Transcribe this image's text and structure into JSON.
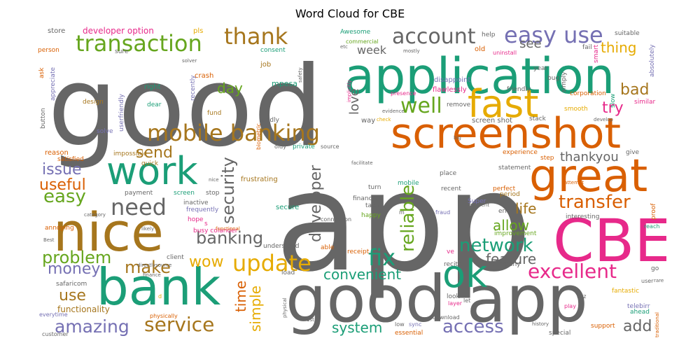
{
  "title": "Word Cloud for CBE",
  "palette": {
    "grey": "#666666",
    "green": "#66a61e",
    "teal": "#1b9e77",
    "orange": "#d95f02",
    "pink": "#e7298a",
    "purple": "#7570b3",
    "gold": "#e6ab02",
    "brown": "#a6761d"
  },
  "words": [
    {
      "text": "app",
      "color": "grey"
    },
    {
      "text": "good",
      "color": "grey"
    },
    {
      "text": "application",
      "color": "teal"
    },
    {
      "text": "screenshot",
      "color": "orange"
    },
    {
      "text": "good app",
      "color": "grey"
    },
    {
      "text": "CBE",
      "color": "pink"
    },
    {
      "text": "nice",
      "color": "brown"
    },
    {
      "text": "bank",
      "color": "teal"
    },
    {
      "text": "great",
      "color": "orange"
    },
    {
      "text": "work",
      "color": "teal"
    },
    {
      "text": "fast",
      "color": "gold"
    },
    {
      "text": "ok",
      "color": "teal"
    },
    {
      "text": "mobile banking",
      "color": "brown"
    },
    {
      "text": "transaction",
      "color": "green"
    },
    {
      "text": "thank",
      "color": "brown"
    },
    {
      "text": "account",
      "color": "grey"
    },
    {
      "text": "easy use",
      "color": "purple"
    },
    {
      "text": "well",
      "color": "green"
    },
    {
      "text": "need",
      "color": "grey"
    },
    {
      "text": "update",
      "color": "gold"
    },
    {
      "text": "fix",
      "color": "teal"
    },
    {
      "text": "service",
      "color": "brown"
    },
    {
      "text": "amazing",
      "color": "purple"
    },
    {
      "text": "excellent",
      "color": "pink"
    },
    {
      "text": "transfer",
      "color": "orange"
    },
    {
      "text": "network",
      "color": "teal"
    },
    {
      "text": "problem",
      "color": "green"
    },
    {
      "text": "make",
      "color": "brown"
    },
    {
      "text": "easy",
      "color": "green"
    },
    {
      "text": "useful",
      "color": "orange"
    },
    {
      "text": "issue",
      "color": "purple"
    },
    {
      "text": "send",
      "color": "brown"
    },
    {
      "text": "security",
      "color": "grey"
    },
    {
      "text": "banking",
      "color": "grey"
    },
    {
      "text": "wow",
      "color": "gold"
    },
    {
      "text": "money",
      "color": "purple"
    },
    {
      "text": "use",
      "color": "brown"
    },
    {
      "text": "convenient",
      "color": "teal"
    },
    {
      "text": "access",
      "color": "purple"
    },
    {
      "text": "system",
      "color": "teal"
    },
    {
      "text": "add",
      "color": "grey"
    },
    {
      "text": "reliable",
      "color": "green"
    },
    {
      "text": "developer",
      "color": "grey"
    },
    {
      "text": "simple",
      "color": "gold"
    },
    {
      "text": "time",
      "color": "orange"
    },
    {
      "text": "feature",
      "color": "grey"
    },
    {
      "text": "life",
      "color": "brown"
    },
    {
      "text": "allow",
      "color": "green"
    },
    {
      "text": "thankyou",
      "color": "grey"
    },
    {
      "text": "try",
      "color": "pink"
    },
    {
      "text": "bad",
      "color": "brown"
    },
    {
      "text": "thing",
      "color": "gold"
    },
    {
      "text": "see",
      "color": "grey"
    },
    {
      "text": "day",
      "color": "green"
    },
    {
      "text": "week",
      "color": "grey"
    },
    {
      "text": "love",
      "color": "grey"
    },
    {
      "text": "functionality",
      "color": "brown"
    },
    {
      "text": "developer option",
      "color": "pink"
    },
    {
      "text": "store",
      "color": "grey"
    },
    {
      "text": "pls",
      "color": "gold"
    },
    {
      "text": "Awesome",
      "color": "teal"
    },
    {
      "text": "help",
      "color": "grey"
    },
    {
      "text": "suitable",
      "color": "grey"
    },
    {
      "text": "absolutely",
      "color": "purple"
    },
    {
      "text": "person",
      "color": "orange"
    },
    {
      "text": "consent",
      "color": "teal"
    },
    {
      "text": "commercial",
      "color": "green"
    },
    {
      "text": "old",
      "color": "orange"
    },
    {
      "text": "uninstall",
      "color": "pink"
    },
    {
      "text": "fail",
      "color": "grey"
    },
    {
      "text": "smart",
      "color": "pink"
    },
    {
      "text": "job",
      "color": "brown"
    },
    {
      "text": "crash",
      "color": "orange"
    },
    {
      "text": "mpesa",
      "color": "teal"
    },
    {
      "text": "right",
      "color": "teal"
    },
    {
      "text": "recently",
      "color": "purple"
    },
    {
      "text": "flawlessly",
      "color": "pink"
    },
    {
      "text": "friendly",
      "color": "grey"
    },
    {
      "text": "corporation",
      "color": "orange"
    },
    {
      "text": "design",
      "color": "brown"
    },
    {
      "text": "dear",
      "color": "teal"
    },
    {
      "text": "fund",
      "color": "brown"
    },
    {
      "text": "userfriendly",
      "color": "purple"
    },
    {
      "text": "remove",
      "color": "grey"
    },
    {
      "text": "smooth",
      "color": "gold"
    },
    {
      "text": "slow",
      "color": "teal"
    },
    {
      "text": "similar",
      "color": "pink"
    },
    {
      "text": "button",
      "color": "grey"
    },
    {
      "text": "ask",
      "color": "orange"
    },
    {
      "text": "appreciate",
      "color": "purple"
    },
    {
      "text": "sure",
      "color": "grey"
    },
    {
      "text": "year",
      "color": "grey"
    },
    {
      "text": "bug",
      "color": "grey"
    },
    {
      "text": "kindly",
      "color": "grey"
    },
    {
      "text": "way",
      "color": "grey"
    },
    {
      "text": "screen shot",
      "color": "grey"
    },
    {
      "text": "stack",
      "color": "grey"
    },
    {
      "text": "simply",
      "color": "grey"
    },
    {
      "text": "solve",
      "color": "purple"
    },
    {
      "text": "reason",
      "color": "orange"
    },
    {
      "text": "impossible",
      "color": "brown"
    },
    {
      "text": "satisfied",
      "color": "orange"
    },
    {
      "text": "quick",
      "color": "brown"
    },
    {
      "text": "oldy",
      "color": "grey"
    },
    {
      "text": "private",
      "color": "teal"
    },
    {
      "text": "source",
      "color": "grey"
    },
    {
      "text": "biometric",
      "color": "orange"
    },
    {
      "text": "experience",
      "color": "orange"
    },
    {
      "text": "give",
      "color": "grey"
    },
    {
      "text": "place",
      "color": "grey"
    },
    {
      "text": "statement",
      "color": "grey"
    },
    {
      "text": "step",
      "color": "orange"
    },
    {
      "text": "frustrating",
      "color": "brown"
    },
    {
      "text": "payment",
      "color": "grey"
    },
    {
      "text": "screen",
      "color": "teal"
    },
    {
      "text": "stop",
      "color": "grey"
    },
    {
      "text": "inactive",
      "color": "grey"
    },
    {
      "text": "frequently",
      "color": "purple"
    },
    {
      "text": "turn",
      "color": "grey"
    },
    {
      "text": "mobile",
      "color": "teal"
    },
    {
      "text": "financial",
      "color": "grey"
    },
    {
      "text": "recent",
      "color": "grey"
    },
    {
      "text": "perfect",
      "color": "orange"
    },
    {
      "text": "period",
      "color": "brown"
    },
    {
      "text": "Super",
      "color": "purple"
    },
    {
      "text": "error",
      "color": "grey"
    },
    {
      "text": "interesting",
      "color": "grey"
    },
    {
      "text": "annoying",
      "color": "orange"
    },
    {
      "text": "hope",
      "color": "pink"
    },
    {
      "text": "happy",
      "color": "green"
    },
    {
      "text": "secure",
      "color": "teal"
    },
    {
      "text": "take",
      "color": "grey"
    },
    {
      "text": "connection",
      "color": "grey"
    },
    {
      "text": "fraud",
      "color": "purple"
    },
    {
      "text": "busy colander",
      "color": "pink"
    },
    {
      "text": "understand",
      "color": "grey"
    },
    {
      "text": "able",
      "color": "orange"
    },
    {
      "text": "receipt",
      "color": "orange"
    },
    {
      "text": "improvement",
      "color": "green"
    },
    {
      "text": "company",
      "color": "grey"
    },
    {
      "text": "ve",
      "color": "pink"
    },
    {
      "text": "recite",
      "color": "grey"
    },
    {
      "text": "client",
      "color": "grey"
    },
    {
      "text": "load",
      "color": "grey"
    },
    {
      "text": "safaricom",
      "color": "grey"
    },
    {
      "text": "look",
      "color": "grey"
    },
    {
      "text": "let",
      "color": "grey"
    },
    {
      "text": "layer",
      "color": "pink"
    },
    {
      "text": "fantastic",
      "color": "gold"
    },
    {
      "text": "telebirr",
      "color": "purple"
    },
    {
      "text": "ahead",
      "color": "teal"
    },
    {
      "text": "play",
      "color": "pink"
    },
    {
      "text": "support",
      "color": "orange"
    },
    {
      "text": "go",
      "color": "grey"
    },
    {
      "text": "proof",
      "color": "orange"
    },
    {
      "text": "reach",
      "color": "teal"
    },
    {
      "text": "everytime",
      "color": "purple"
    },
    {
      "text": "physically",
      "color": "orange"
    },
    {
      "text": "customer",
      "color": "grey"
    },
    {
      "text": "low",
      "color": "grey"
    },
    {
      "text": "sync",
      "color": "purple"
    },
    {
      "text": "download",
      "color": "grey"
    },
    {
      "text": "essential",
      "color": "orange"
    },
    {
      "text": "special",
      "color": "grey"
    },
    {
      "text": "disappoint",
      "color": "purple"
    },
    {
      "text": "coz",
      "color": "grey"
    },
    {
      "text": "user",
      "color": "grey"
    },
    {
      "text": "rare",
      "color": "grey"
    },
    {
      "text": "history",
      "color": "grey"
    },
    {
      "text": "Best",
      "color": "grey"
    },
    {
      "text": "likely",
      "color": "grey"
    },
    {
      "text": "category",
      "color": "grey"
    },
    {
      "text": "functional",
      "color": "orange"
    },
    {
      "text": "directlysource",
      "color": "grey"
    },
    {
      "text": "finance",
      "color": "grey"
    },
    {
      "text": "evidence",
      "color": "grey"
    },
    {
      "text": "check",
      "color": "gold"
    },
    {
      "text": "presence",
      "color": "pink"
    },
    {
      "text": "safety",
      "color": "grey"
    },
    {
      "text": "solver",
      "color": "grey"
    },
    {
      "text": "mostly",
      "color": "grey"
    },
    {
      "text": "etc",
      "color": "grey"
    },
    {
      "text": "attempt",
      "color": "orange"
    },
    {
      "text": "prevent",
      "color": "grey"
    },
    {
      "text": "develop",
      "color": "grey"
    },
    {
      "text": "facilitate",
      "color": "grey"
    },
    {
      "text": "implicitly",
      "color": "pink"
    },
    {
      "text": "big",
      "color": "grey"
    },
    {
      "text": "nice",
      "color": "grey"
    },
    {
      "text": "physical",
      "color": "grey"
    },
    {
      "text": "traditional",
      "color": "orange"
    },
    {
      "text": "s",
      "color": "pink"
    },
    {
      "text": "d",
      "color": "gold"
    },
    {
      "text": "m",
      "color": "grey"
    },
    {
      "text": "1st",
      "color": "grey"
    }
  ]
}
